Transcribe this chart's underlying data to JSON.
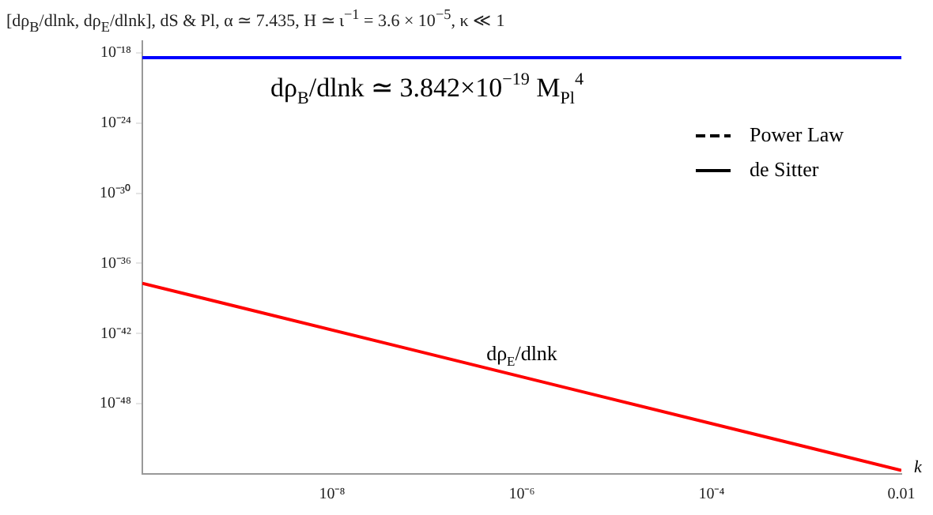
{
  "chart_data": {
    "type": "line",
    "title": "[dρ$_{B}$/dlnk, dρ$_{E}$/dlnk], dS & Pl, α ≃ 7.435, H ≃ ι$^{−1}$ = 3.6 × 10$^{−5}$, κ ≪ 1",
    "xlabel": "k",
    "log": "xy",
    "x": [
      1e-10,
      0.01
    ],
    "series": [
      {
        "color": "#0000ff",
        "values": [
          3.842e-19,
          3.842e-19
        ]
      },
      {
        "color": "#ff0000",
        "values": [
          2e-38,
          2e-54
        ]
      },
      {
        "name": "Power Law",
        "color": "#000000",
        "line_style": "dashed",
        "values": [
          null,
          null
        ]
      },
      {
        "name": "de Sitter",
        "color": "#000000",
        "line_style": "solid",
        "values": [
          null,
          null
        ]
      }
    ],
    "xlim": [
      1e-10,
      0.01
    ],
    "xticks": [
      {
        "value": 1e-08,
        "label": "10⁻⁸"
      },
      {
        "value": 1e-06,
        "label": "10⁻⁶"
      },
      {
        "value": 0.0001,
        "label": "10⁻⁴"
      },
      0.01
    ],
    "ylim": [
      1e-54,
      1e-17
    ],
    "yticks": [
      {
        "value": 1e-18,
        "label": "10⁻¹⁸"
      },
      {
        "value": 1e-24,
        "label": "10⁻²⁴"
      },
      {
        "value": 1e-30,
        "label": "10⁻³⁰"
      },
      {
        "value": 1e-36,
        "label": "10⁻³⁶"
      },
      {
        "value": 1e-42,
        "label": "10⁻⁴²"
      },
      {
        "value": 1e-48,
        "label": "10⁻⁴⁸"
      }
    ],
    "annotations": [
      {
        "text": "dρ$_{B}$/dlnk ≃ 3.842×10$^{−19}$ M$_{Pl}$$^{4}$",
        "x": 1e-07,
        "y": 3.842e-19
      },
      {
        "text": "dρ$_{E}$/dlnk",
        "x": 1e-06,
        "y": 2e-46
      }
    ],
    "legend": "right",
    "grid": false
  }
}
